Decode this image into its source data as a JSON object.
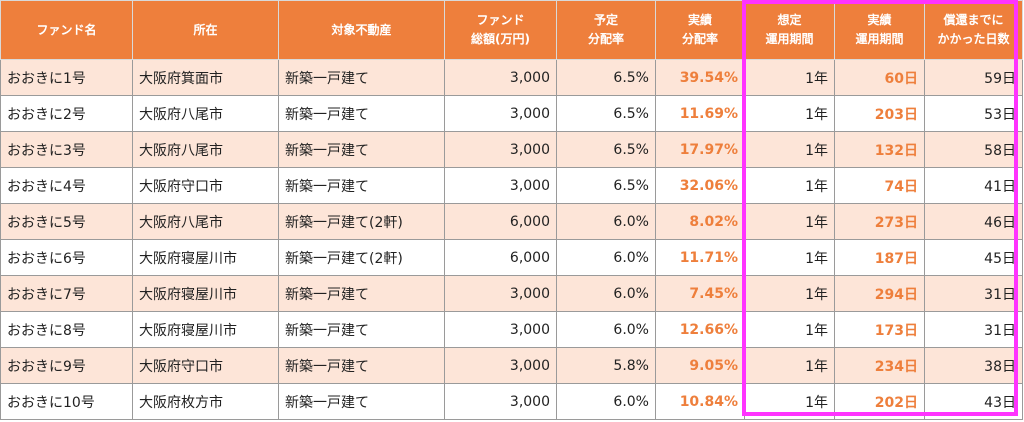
{
  "table": {
    "headers": [
      "ファンド名",
      "所在",
      "対象不動産",
      "ファンド\n総額(万円)",
      "予定\n分配率",
      "実績\n分配率",
      "想定\n運用期間",
      "実績\n運用期間",
      "償還までに\nかかった日数"
    ],
    "rows": [
      [
        "おおきに1号",
        "大阪府箕面市",
        "新築一戸建て",
        "3,000",
        "6.5%",
        "39.54%",
        "1年",
        "60日",
        "59日"
      ],
      [
        "おおきに2号",
        "大阪府八尾市",
        "新築一戸建て",
        "3,000",
        "6.5%",
        "11.69%",
        "1年",
        "203日",
        "53日"
      ],
      [
        "おおきに3号",
        "大阪府八尾市",
        "新築一戸建て",
        "3,000",
        "6.5%",
        "17.97%",
        "1年",
        "132日",
        "58日"
      ],
      [
        "おおきに4号",
        "大阪府守口市",
        "新築一戸建て",
        "3,000",
        "6.5%",
        "32.06%",
        "1年",
        "74日",
        "41日"
      ],
      [
        "おおきに5号",
        "大阪府八尾市",
        "新築一戸建て(2軒)",
        "6,000",
        "6.0%",
        "8.02%",
        "1年",
        "273日",
        "46日"
      ],
      [
        "おおきに6号",
        "大阪府寝屋川市",
        "新築一戸建て(2軒)",
        "6,000",
        "6.0%",
        "11.71%",
        "1年",
        "187日",
        "45日"
      ],
      [
        "おおきに7号",
        "大阪府寝屋川市",
        "新築一戸建て",
        "3,000",
        "6.0%",
        "7.45%",
        "1年",
        "294日",
        "31日"
      ],
      [
        "おおきに8号",
        "大阪府寝屋川市",
        "新築一戸建て",
        "3,000",
        "6.0%",
        "12.66%",
        "1年",
        "173日",
        "31日"
      ],
      [
        "おおきに9号",
        "大阪府守口市",
        "新築一戸建て",
        "3,000",
        "5.8%",
        "9.05%",
        "1年",
        "234日",
        "38日"
      ],
      [
        "おおきに10号",
        "大阪府枚方市",
        "新築一戸建て",
        "3,000",
        "6.0%",
        "10.84%",
        "1年",
        "202日",
        "43日"
      ]
    ]
  },
  "colors": {
    "header_bg": "#ee7f3c",
    "accent_text": "#ee7f3c",
    "row_stripe": "#fde5d8",
    "highlight_border": "#ff33ff"
  }
}
